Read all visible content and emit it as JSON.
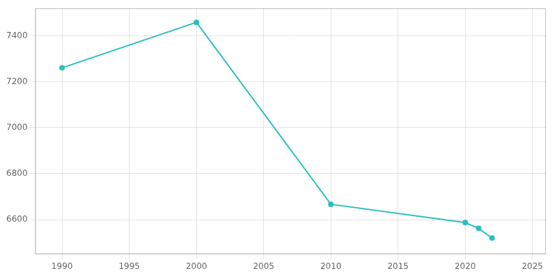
{
  "chart_data": {
    "type": "line",
    "x": [
      1990,
      2000,
      2010,
      2020,
      2021,
      2022
    ],
    "values": [
      7261,
      7459,
      6667,
      6587,
      6562,
      6520
    ],
    "color": "#2abfbf",
    "marker": "circle",
    "xlim": [
      1988,
      2026
    ],
    "ylim": [
      6450,
      7520
    ],
    "xticks": [
      1990,
      1995,
      2000,
      2005,
      2010,
      2015,
      2020,
      2025
    ],
    "yticks": [
      6600,
      6800,
      7000,
      7200,
      7400
    ],
    "grid": true
  }
}
